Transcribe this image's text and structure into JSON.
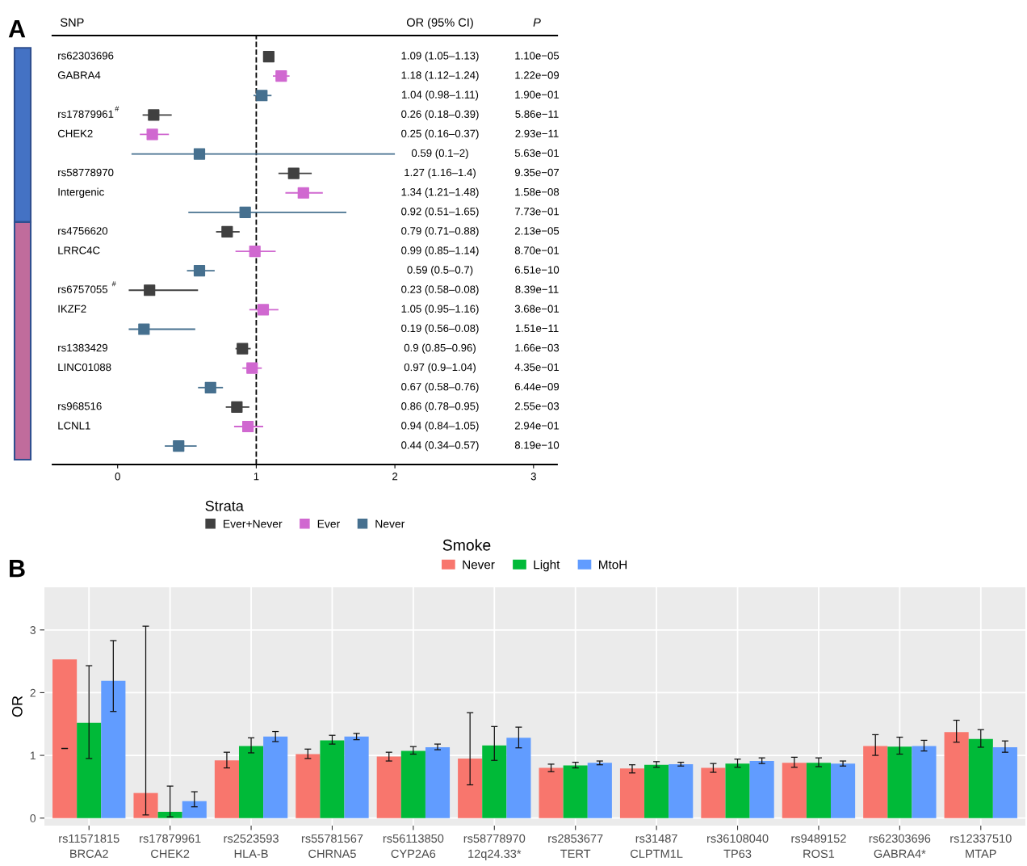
{
  "chart_data": [
    {
      "type": "scatter",
      "title": "A",
      "ylabel": "SNP",
      "orientation": "horizontal",
      "marker": "square",
      "categories": [
        "rs62303696",
        "GABRA4",
        null,
        "rs17879961$^{#}$",
        "CHEK2",
        null,
        "rs58778970",
        "Intergenic",
        null,
        "rs4756620",
        "LRRC4C",
        null,
        "rs6757055 $^{#}$",
        "IKZF2",
        null,
        "rs1383429",
        "LINC01088",
        null,
        "rs968516",
        "LCNL1",
        null
      ],
      "series": [
        {
          "name": "Ever+Never",
          "color": "#404040",
          "values": [
            1.09,
            null,
            null,
            0.26,
            null,
            null,
            1.27,
            null,
            null,
            0.79,
            null,
            null,
            0.23,
            null,
            null,
            0.9,
            null,
            null,
            0.86,
            null,
            null
          ],
          "errors": [
            [
              1.05,
              1.13
            ],
            null,
            null,
            [
              0.18,
              0.39
            ],
            null,
            null,
            [
              1.16,
              1.4
            ],
            null,
            null,
            [
              0.71,
              0.88
            ],
            null,
            null,
            [
              0.08,
              0.58
            ],
            null,
            null,
            [
              0.85,
              0.96
            ],
            null,
            null,
            [
              0.78,
              0.95
            ],
            null,
            null
          ]
        },
        {
          "name": "Ever",
          "color": "#d068d0",
          "values": [
            null,
            1.18,
            null,
            null,
            0.25,
            null,
            null,
            1.34,
            null,
            null,
            0.99,
            null,
            null,
            1.05,
            null,
            null,
            0.97,
            null,
            null,
            0.94,
            null
          ],
          "errors": [
            null,
            [
              1.12,
              1.24
            ],
            null,
            null,
            [
              0.16,
              0.37
            ],
            null,
            null,
            [
              1.21,
              1.48
            ],
            null,
            null,
            [
              0.85,
              1.14
            ],
            null,
            null,
            [
              0.95,
              1.16
            ],
            null,
            null,
            [
              0.9,
              1.04
            ],
            null,
            null,
            [
              0.84,
              1.05
            ],
            null
          ]
        },
        {
          "name": "Never",
          "color": "#46708f",
          "values": [
            null,
            null,
            1.04,
            null,
            null,
            0.59,
            null,
            null,
            0.92,
            null,
            null,
            0.59,
            null,
            null,
            0.19,
            null,
            null,
            0.67,
            null,
            null,
            0.44
          ],
          "errors": [
            null,
            null,
            [
              0.98,
              1.11
            ],
            null,
            null,
            [
              0.1,
              2
            ],
            null,
            null,
            [
              0.51,
              1.65
            ],
            null,
            null,
            [
              0.5,
              0.7
            ],
            null,
            null,
            [
              0.08,
              0.56
            ],
            null,
            null,
            [
              0.58,
              0.76
            ],
            null,
            null,
            [
              0.34,
              0.57
            ]
          ]
        }
      ],
      "xlim": [
        -0.47,
        3.17
      ],
      "xticks": [
        0,
        1,
        2,
        3
      ],
      "ref_lines": [
        {
          "axis": "x",
          "value": 1,
          "line_style": "dashed",
          "color": "#000000"
        }
      ],
      "annotations": [
        "OR (95% CI)",
        "P",
        "1.09 (1.05–1.13)",
        "1.10e−05",
        "1.18 (1.12–1.24)",
        "1.22e−09",
        "1.04 (0.98–1.11)",
        "1.90e−01",
        "0.26 (0.18–0.39)",
        "5.86e−11",
        "0.25 (0.16–0.37)",
        "2.93e−11",
        "0.59 (0.1–2)",
        "5.63e−01",
        "1.27 (1.16–1.4)",
        "9.35e−07",
        "1.34 (1.21–1.48)",
        "1.58e−08",
        "0.92 (0.51–1.65)",
        "7.73e−01",
        "0.79 (0.71–0.88)",
        "2.13e−05",
        "0.99 (0.85–1.14)",
        "8.70e−01",
        "0.59 (0.5–0.7)",
        "6.51e−10",
        "0.23 (0.58–0.08)",
        "8.39e−11",
        "1.05 (0.95–1.16)",
        "3.68e−01",
        "0.19 (0.56–0.08)",
        "1.51e−11",
        "0.9 (0.85–0.96)",
        "1.66e−03",
        "0.97 (0.9–1.04)",
        "4.35e−01",
        "0.67 (0.58–0.76)",
        "6.44e−09",
        "0.86 (0.78–0.95)",
        "2.55e−03",
        "0.94 (0.84–1.05)",
        "2.94e−01",
        "0.44 (0.34–0.57)",
        "8.19e−10"
      ],
      "legend": "bottom",
      "legend_title": "Strata",
      "grid": false
    },
    {
      "type": "bar",
      "title": "B",
      "ylabel": "OR",
      "categories": [
        "rs11571815\nBRCA2",
        "rs17879961\nCHEK2",
        "rs2523593\nHLA-B",
        "rs55781567\nCHRNA5",
        "rs56113850\nCYP2A6",
        "rs58778970\n12q24.33*",
        "rs2853677\nTERT",
        "rs31487\nCLPTM1L",
        "rs36108040\nTP63",
        "rs9489152\nROS1",
        "rs62303696\nGABRA4*",
        "rs12337510\nMTAP"
      ],
      "series": [
        {
          "name": "Never",
          "color": "#f8766d",
          "values": [
            2.53,
            0.4,
            0.92,
            1.02,
            0.98,
            0.95,
            0.8,
            0.79,
            0.8,
            0.88,
            1.15,
            1.37
          ],
          "errors": [
            [
              1.11,
              1.11
            ],
            [
              0.05,
              3.06
            ],
            [
              0.8,
              1.05
            ],
            [
              0.95,
              1.1
            ],
            [
              0.91,
              1.05
            ],
            [
              0.53,
              1.68
            ],
            [
              0.74,
              0.86
            ],
            [
              0.72,
              0.85
            ],
            [
              0.73,
              0.87
            ],
            [
              0.81,
              0.97
            ],
            [
              1.0,
              1.33
            ],
            [
              1.21,
              1.56
            ]
          ]
        },
        {
          "name": "Light",
          "color": "#00ba38",
          "values": [
            1.52,
            0.1,
            1.15,
            1.24,
            1.07,
            1.16,
            0.84,
            0.85,
            0.87,
            0.88,
            1.14,
            1.26
          ],
          "errors": [
            [
              0.95,
              2.43
            ],
            [
              0.02,
              0.51
            ],
            [
              1.04,
              1.28
            ],
            [
              1.18,
              1.32
            ],
            [
              1.02,
              1.14
            ],
            [
              0.92,
              1.46
            ],
            [
              0.8,
              0.89
            ],
            [
              0.81,
              0.9
            ],
            [
              0.81,
              0.94
            ],
            [
              0.82,
              0.96
            ],
            [
              1.02,
              1.29
            ],
            [
              1.13,
              1.41
            ]
          ]
        },
        {
          "name": "MtoH",
          "color": "#619cff",
          "values": [
            2.19,
            0.27,
            1.3,
            1.3,
            1.13,
            1.28,
            0.88,
            0.86,
            0.91,
            0.87,
            1.15,
            1.13
          ],
          "errors": [
            [
              1.7,
              2.83
            ],
            [
              0.18,
              0.42
            ],
            [
              1.22,
              1.38
            ],
            [
              1.25,
              1.35
            ],
            [
              1.09,
              1.18
            ],
            [
              1.12,
              1.45
            ],
            [
              0.85,
              0.91
            ],
            [
              0.83,
              0.89
            ],
            [
              0.87,
              0.96
            ],
            [
              0.83,
              0.91
            ],
            [
              1.07,
              1.24
            ],
            [
              1.05,
              1.23
            ]
          ]
        }
      ],
      "ylim": [
        -0.12,
        3.68
      ],
      "yticks": [
        0,
        1,
        2,
        3
      ],
      "grid": true,
      "legend": "top",
      "legend_title": "Smoke"
    }
  ]
}
